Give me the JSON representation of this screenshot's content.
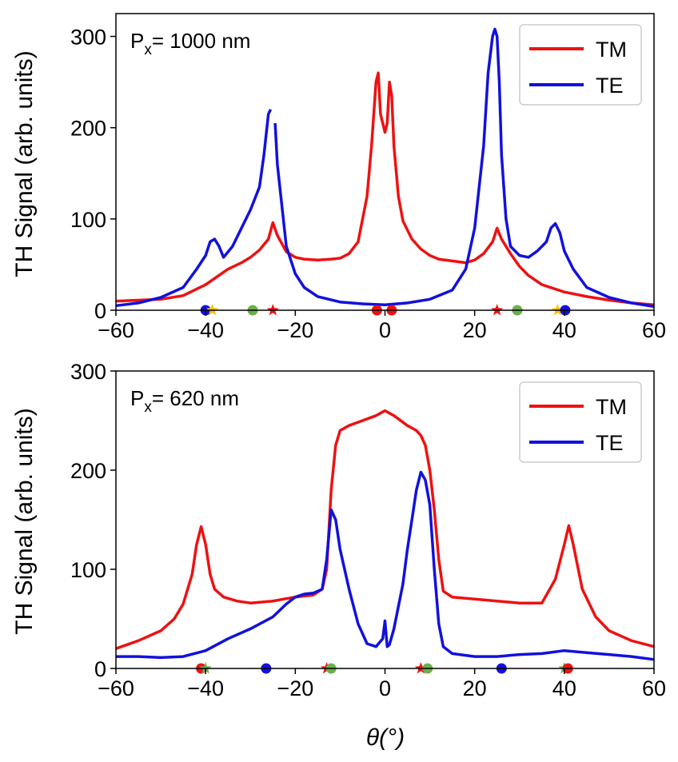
{
  "figure": {
    "xlabel": "θ(°)",
    "ylabel": "TH Signal (arb. units)"
  },
  "colors": {
    "TM": "#ee1111",
    "TE": "#1111dd",
    "red": "#ee1111",
    "blue": "#1111dd",
    "green": "#6ab04c",
    "gold": "#f4c20d"
  },
  "chart_data": [
    {
      "type": "line",
      "annotation": {
        "prefix": "P",
        "sub": "x",
        "suffix": "= 1000 nm"
      },
      "xlim": [
        -60,
        60
      ],
      "ylim": [
        0,
        325
      ],
      "xticks": [
        -60,
        -40,
        -20,
        0,
        20,
        40,
        60
      ],
      "yticks": [
        0,
        100,
        200,
        300
      ],
      "legend": {
        "position": "top-right",
        "entries": [
          "TM",
          "TE"
        ]
      },
      "grid": false,
      "series": [
        {
          "name": "TM",
          "color": "#ee1111",
          "x": [
            -60,
            -50,
            -45,
            -40,
            -35,
            -32,
            -30,
            -28,
            -26,
            -25,
            -24,
            -22,
            -20,
            -18,
            -15,
            -12,
            -10,
            -8,
            -6,
            -4,
            -3,
            -2,
            -1.5,
            -1,
            0,
            0.5,
            1,
            1.5,
            2,
            3,
            4,
            6,
            8,
            10,
            12,
            15,
            18,
            20,
            22,
            24,
            25,
            26,
            28,
            30,
            32,
            35,
            40,
            45,
            50,
            55,
            60
          ],
          "y": [
            10,
            12,
            16,
            28,
            45,
            52,
            58,
            66,
            78,
            96,
            82,
            64,
            58,
            56,
            55,
            56,
            57,
            62,
            75,
            125,
            180,
            250,
            260,
            215,
            195,
            205,
            250,
            235,
            180,
            125,
            98,
            78,
            67,
            60,
            56,
            54,
            52,
            55,
            62,
            75,
            90,
            78,
            62,
            48,
            38,
            28,
            20,
            15,
            11,
            8,
            6
          ]
        },
        {
          "name": "TE",
          "color": "#1111dd",
          "x": [
            -60,
            -55,
            -50,
            -45,
            -42,
            -40,
            -39,
            -38,
            -37,
            -36,
            -34,
            -32,
            -30,
            -28,
            -27,
            -26,
            -25.5,
            -25,
            -24.5,
            -24,
            -22,
            -20,
            -18,
            -15,
            -10,
            -5,
            0,
            5,
            10,
            15,
            18,
            20,
            22,
            23,
            24,
            24.5,
            25,
            25.5,
            26,
            27,
            28,
            30,
            32,
            34,
            36,
            37,
            38,
            39,
            40,
            42,
            45,
            50,
            55,
            60
          ],
          "y": [
            5,
            8,
            14,
            25,
            45,
            60,
            75,
            78,
            70,
            58,
            70,
            90,
            110,
            135,
            170,
            215,
            220,
            null,
            205,
            160,
            70,
            40,
            25,
            15,
            9,
            7,
            6,
            8,
            12,
            22,
            45,
            90,
            180,
            260,
            300,
            308,
            300,
            250,
            170,
            100,
            70,
            60,
            58,
            65,
            75,
            90,
            95,
            85,
            65,
            45,
            25,
            14,
            8,
            4
          ]
        }
      ],
      "axis_markers": [
        {
          "x": -40,
          "shape": "circle",
          "color": "#1111dd"
        },
        {
          "x": -38.5,
          "shape": "star",
          "color": "#f4c20d"
        },
        {
          "x": -29.5,
          "shape": "circle",
          "color": "#6ab04c"
        },
        {
          "x": -25,
          "shape": "star",
          "color": "#ee1111"
        },
        {
          "x": -1.8,
          "shape": "circle",
          "color": "#ee1111"
        },
        {
          "x": 1.5,
          "shape": "circle",
          "color": "#ee1111"
        },
        {
          "x": 25,
          "shape": "star",
          "color": "#ee1111"
        },
        {
          "x": 29.5,
          "shape": "circle",
          "color": "#6ab04c"
        },
        {
          "x": 38.5,
          "shape": "star",
          "color": "#f4c20d"
        },
        {
          "x": 40.2,
          "shape": "circle",
          "color": "#1111dd"
        }
      ]
    },
    {
      "type": "line",
      "annotation": {
        "prefix": "P",
        "sub": "x",
        "suffix": "= 620 nm"
      },
      "xlim": [
        -60,
        60
      ],
      "ylim": [
        0,
        300
      ],
      "xticks": [
        -60,
        -40,
        -20,
        0,
        20,
        40,
        60
      ],
      "yticks": [
        0,
        100,
        200,
        300
      ],
      "legend": {
        "position": "top-right",
        "entries": [
          "TM",
          "TE"
        ]
      },
      "grid": false,
      "series": [
        {
          "name": "TM",
          "color": "#ee1111",
          "x": [
            -60,
            -55,
            -50,
            -47,
            -45,
            -43,
            -42,
            -41,
            -40,
            -39,
            -38,
            -36,
            -33,
            -30,
            -25,
            -20,
            -16,
            -14,
            -13,
            -12,
            -11,
            -10,
            -8,
            -5,
            -2,
            0,
            2,
            5,
            7,
            8,
            9,
            10,
            11,
            12,
            13,
            15,
            20,
            25,
            30,
            35,
            38,
            40,
            41,
            42,
            44,
            47,
            50,
            55,
            60
          ],
          "y": [
            20,
            28,
            38,
            50,
            65,
            95,
            125,
            143,
            125,
            95,
            80,
            72,
            68,
            66,
            68,
            72,
            74,
            80,
            100,
            180,
            225,
            240,
            245,
            250,
            255,
            260,
            255,
            245,
            240,
            235,
            225,
            200,
            160,
            110,
            78,
            72,
            70,
            68,
            66,
            66,
            90,
            125,
            144,
            125,
            80,
            52,
            38,
            28,
            22
          ]
        },
        {
          "name": "TE",
          "color": "#1111dd",
          "x": [
            -60,
            -55,
            -50,
            -45,
            -40,
            -35,
            -30,
            -25,
            -22,
            -20,
            -18,
            -16,
            -14,
            -13,
            -12,
            -11,
            -10,
            -8,
            -6,
            -4,
            -2,
            -0.5,
            0,
            0.5,
            1,
            2,
            4,
            5,
            6,
            7,
            8,
            9,
            10,
            11,
            12,
            13,
            15,
            20,
            25,
            30,
            35,
            40,
            45,
            50,
            55,
            60
          ],
          "y": [
            12,
            12,
            11,
            12,
            18,
            30,
            40,
            52,
            65,
            72,
            75,
            76,
            80,
            110,
            160,
            150,
            120,
            80,
            45,
            25,
            22,
            30,
            48,
            22,
            24,
            40,
            85,
            120,
            150,
            180,
            198,
            190,
            165,
            100,
            45,
            22,
            15,
            12,
            12,
            14,
            15,
            18,
            16,
            14,
            12,
            9
          ]
        }
      ],
      "axis_markers": [
        {
          "x": -41,
          "shape": "circle",
          "color": "#ee1111"
        },
        {
          "x": -40,
          "shape": "star",
          "color": "#6ab04c"
        },
        {
          "x": -26.5,
          "shape": "circle",
          "color": "#1111dd"
        },
        {
          "x": -13,
          "shape": "star",
          "color": "#ee1111"
        },
        {
          "x": -12,
          "shape": "circle",
          "color": "#6ab04c"
        },
        {
          "x": 8,
          "shape": "star",
          "color": "#ee1111"
        },
        {
          "x": 9.5,
          "shape": "circle",
          "color": "#6ab04c"
        },
        {
          "x": 26,
          "shape": "circle",
          "color": "#1111dd"
        },
        {
          "x": 40,
          "shape": "star",
          "color": "#6ab04c"
        },
        {
          "x": 40.8,
          "shape": "circle",
          "color": "#ee1111"
        }
      ]
    }
  ]
}
